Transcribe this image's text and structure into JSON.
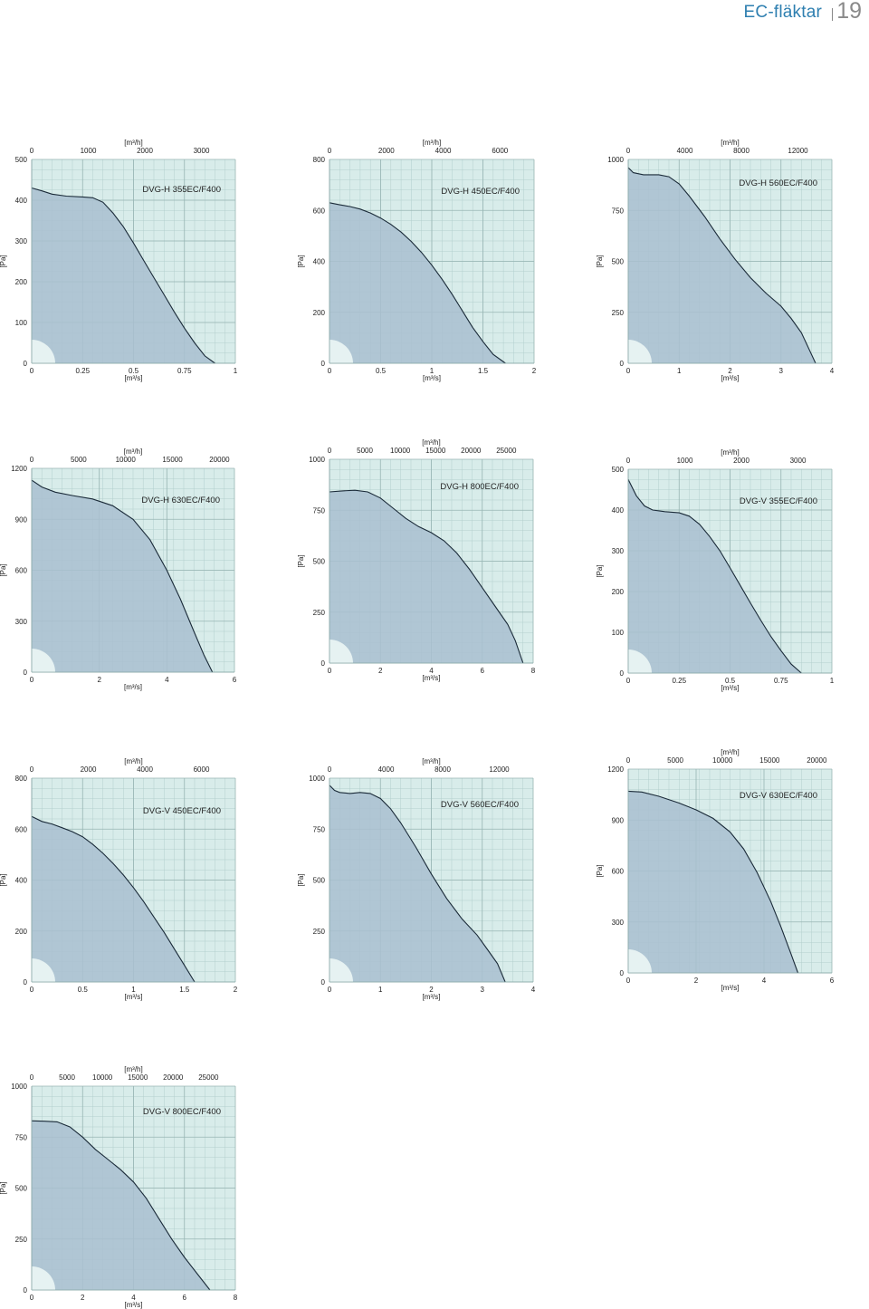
{
  "header": {
    "title": "EC-fläktar",
    "page_number": "19"
  },
  "colors": {
    "plot_background": "#d8ecea",
    "grid": "#b3cfcd",
    "curve_fill": "#a9bfd0",
    "curve_stroke": "#1a2a38",
    "corner_mark": "#ecf6f5"
  },
  "chart_data": [
    {
      "type": "area",
      "title": "DVG-H 355EC/F400",
      "xlabel": "[m³/s]",
      "x2label": "[m³/h]",
      "ylabel": "[Pa]",
      "xlim": [
        0,
        1
      ],
      "ylim": [
        0,
        500
      ],
      "x_ticks": [
        "0",
        "0.25",
        "0.5",
        "0.75",
        "1"
      ],
      "x2_ticks": [
        "0",
        "1000",
        "2000",
        "3000"
      ],
      "y_ticks": [
        "0",
        "100",
        "200",
        "300",
        "400",
        "500"
      ],
      "grid": true,
      "series": [
        {
          "x": [
            0,
            0.05,
            0.1,
            0.17,
            0.25,
            0.3,
            0.35,
            0.4,
            0.45,
            0.5,
            0.55,
            0.6,
            0.65,
            0.7,
            0.75,
            0.8,
            0.85,
            0.9
          ],
          "y": [
            430,
            423,
            415,
            410,
            408,
            406,
            395,
            368,
            335,
            295,
            252,
            210,
            168,
            126,
            86,
            50,
            18,
            0
          ]
        }
      ]
    },
    {
      "type": "area",
      "title": "DVG-H 450EC/F400",
      "xlabel": "[m³/s]",
      "x2label": "[m³/h]",
      "ylabel": "[Pa]",
      "xlim": [
        0,
        2
      ],
      "ylim": [
        0,
        800
      ],
      "x_ticks": [
        "0",
        "0.5",
        "1",
        "1.5",
        "2"
      ],
      "x2_ticks": [
        "0",
        "2000",
        "4000",
        "6000"
      ],
      "y_ticks": [
        "0",
        "200",
        "400",
        "600",
        "800"
      ],
      "grid": true,
      "series": [
        {
          "x": [
            0,
            0.1,
            0.2,
            0.3,
            0.4,
            0.5,
            0.6,
            0.7,
            0.8,
            0.9,
            1.0,
            1.1,
            1.2,
            1.3,
            1.4,
            1.5,
            1.6,
            1.72
          ],
          "y": [
            630,
            622,
            615,
            605,
            590,
            570,
            545,
            515,
            478,
            435,
            385,
            330,
            270,
            205,
            140,
            85,
            35,
            0
          ]
        }
      ]
    },
    {
      "type": "area",
      "title": "DVG-H 560EC/F400",
      "xlabel": "[m³/s]",
      "x2label": "[m³/h]",
      "ylabel": "[Pa]",
      "xlim": [
        0,
        4
      ],
      "ylim": [
        0,
        1000
      ],
      "x_ticks": [
        "0",
        "1",
        "2",
        "3",
        "4"
      ],
      "x2_ticks": [
        "0",
        "4000",
        "8000",
        "12000"
      ],
      "y_ticks": [
        "0",
        "250",
        "500",
        "750",
        "1000"
      ],
      "grid": true,
      "series": [
        {
          "x": [
            0,
            0.1,
            0.3,
            0.6,
            0.8,
            1.0,
            1.2,
            1.5,
            1.8,
            2.1,
            2.4,
            2.7,
            3.0,
            3.2,
            3.4,
            3.55,
            3.68
          ],
          "y": [
            960,
            935,
            925,
            925,
            915,
            880,
            820,
            720,
            610,
            510,
            420,
            345,
            280,
            220,
            150,
            70,
            0
          ]
        }
      ]
    },
    {
      "type": "area",
      "title": "DVG-H 630EC/F400",
      "xlabel": "[m³/s]",
      "x2label": "[m³/h]",
      "ylabel": "[Pa]",
      "xlim": [
        0,
        6
      ],
      "ylim": [
        0,
        1200
      ],
      "x_ticks": [
        "0",
        "2",
        "4",
        "6"
      ],
      "x2_ticks": [
        "0",
        "5000",
        "10000",
        "15000",
        "20000"
      ],
      "y_ticks": [
        "0",
        "300",
        "600",
        "900",
        "1200"
      ],
      "grid": true,
      "series": [
        {
          "x": [
            0,
            0.3,
            0.7,
            1.2,
            1.8,
            2.4,
            3.0,
            3.5,
            4.0,
            4.4,
            4.8,
            5.1,
            5.35
          ],
          "y": [
            1130,
            1090,
            1060,
            1040,
            1020,
            980,
            900,
            780,
            600,
            430,
            240,
            100,
            0
          ]
        }
      ]
    },
    {
      "type": "area",
      "title": "DVG-H 800EC/F400",
      "xlabel": "[m³/s]",
      "x2label": "[m³/h]",
      "ylabel": "[Pa]",
      "xlim": [
        0,
        8
      ],
      "ylim": [
        0,
        1000
      ],
      "x_ticks": [
        "0",
        "2",
        "4",
        "6",
        "8"
      ],
      "x2_ticks": [
        "0",
        "5000",
        "10000",
        "15000",
        "20000",
        "25000"
      ],
      "y_ticks": [
        "0",
        "250",
        "500",
        "750",
        "1000"
      ],
      "grid": true,
      "series": [
        {
          "x": [
            0,
            0.5,
            1.0,
            1.5,
            2.0,
            2.5,
            3.0,
            3.5,
            4.0,
            4.5,
            5.0,
            5.5,
            6.0,
            6.5,
            7.0,
            7.3,
            7.6
          ],
          "y": [
            840,
            845,
            848,
            840,
            810,
            760,
            710,
            670,
            640,
            600,
            540,
            460,
            370,
            280,
            190,
            110,
            0
          ]
        }
      ]
    },
    {
      "type": "area",
      "title": "DVG-V 355EC/F400",
      "xlabel": "[m³/s]",
      "x2label": "[m³/h]",
      "ylabel": "[Pa]",
      "xlim": [
        0,
        1
      ],
      "ylim": [
        0,
        500
      ],
      "x_ticks": [
        "0",
        "0.25",
        "0.5",
        "0.75",
        "1"
      ],
      "x2_ticks": [
        "0",
        "1000",
        "2000",
        "3000"
      ],
      "y_ticks": [
        "0",
        "100",
        "200",
        "300",
        "400",
        "500"
      ],
      "grid": true,
      "series": [
        {
          "x": [
            0,
            0.04,
            0.08,
            0.12,
            0.18,
            0.25,
            0.3,
            0.35,
            0.4,
            0.45,
            0.5,
            0.55,
            0.6,
            0.65,
            0.7,
            0.75,
            0.8,
            0.85
          ],
          "y": [
            475,
            435,
            410,
            400,
            396,
            393,
            385,
            365,
            335,
            300,
            258,
            215,
            172,
            130,
            90,
            55,
            22,
            0
          ]
        }
      ]
    },
    {
      "type": "area",
      "title": "DVG-V 450EC/F400",
      "xlabel": "[m³/s]",
      "x2label": "[m³/h]",
      "ylabel": "[Pa]",
      "xlim": [
        0,
        2
      ],
      "ylim": [
        0,
        800
      ],
      "x_ticks": [
        "0",
        "0.5",
        "1",
        "1.5",
        "2"
      ],
      "x2_ticks": [
        "0",
        "2000",
        "4000",
        "6000"
      ],
      "y_ticks": [
        "0",
        "200",
        "400",
        "600",
        "800"
      ],
      "grid": true,
      "series": [
        {
          "x": [
            0,
            0.1,
            0.2,
            0.3,
            0.4,
            0.5,
            0.6,
            0.7,
            0.8,
            0.9,
            1.0,
            1.1,
            1.2,
            1.3,
            1.4,
            1.5,
            1.6
          ],
          "y": [
            650,
            630,
            620,
            605,
            590,
            570,
            540,
            505,
            465,
            420,
            370,
            315,
            255,
            195,
            130,
            65,
            0
          ]
        }
      ]
    },
    {
      "type": "area",
      "title": "DVG-V 560EC/F400",
      "xlabel": "[m³/s]",
      "x2label": "[m³/h]",
      "ylabel": "[Pa]",
      "xlim": [
        0,
        4
      ],
      "ylim": [
        0,
        1000
      ],
      "x_ticks": [
        "0",
        "1",
        "2",
        "3",
        "4"
      ],
      "x2_ticks": [
        "0",
        "4000",
        "8000",
        "12000"
      ],
      "y_ticks": [
        "0",
        "250",
        "500",
        "750",
        "1000"
      ],
      "grid": true,
      "series": [
        {
          "x": [
            0,
            0.1,
            0.2,
            0.4,
            0.6,
            0.8,
            1.0,
            1.2,
            1.4,
            1.7,
            2.0,
            2.3,
            2.6,
            2.9,
            3.1,
            3.3,
            3.45
          ],
          "y": [
            965,
            940,
            930,
            925,
            930,
            925,
            900,
            850,
            780,
            660,
            530,
            410,
            310,
            230,
            160,
            90,
            0
          ]
        }
      ]
    },
    {
      "type": "area",
      "title": "DVG-V 630EC/F400",
      "xlabel": "[m³/s]",
      "x2label": "[m³/h]",
      "ylabel": "[Pa]",
      "xlim": [
        0,
        6
      ],
      "ylim": [
        0,
        1200
      ],
      "x_ticks": [
        "0",
        "2",
        "4",
        "6"
      ],
      "x2_ticks": [
        "0",
        "5000",
        "10000",
        "15000",
        "20000"
      ],
      "y_ticks": [
        "0",
        "300",
        "600",
        "900",
        "1200"
      ],
      "grid": true,
      "series": [
        {
          "x": [
            0,
            0.4,
            0.9,
            1.5,
            2.0,
            2.5,
            3.0,
            3.4,
            3.8,
            4.2,
            4.5,
            4.8,
            5.0
          ],
          "y": [
            1070,
            1065,
            1040,
            1000,
            960,
            910,
            830,
            730,
            590,
            420,
            270,
            110,
            0
          ]
        }
      ]
    },
    {
      "type": "area",
      "title": "DVG-V 800EC/F400",
      "xlabel": "[m³/s]",
      "x2label": "[m³/h]",
      "ylabel": "[Pa]",
      "xlim": [
        0,
        8
      ],
      "ylim": [
        0,
        1000
      ],
      "x_ticks": [
        "0",
        "2",
        "4",
        "6",
        "8"
      ],
      "x2_ticks": [
        "0",
        "5000",
        "10000",
        "15000",
        "20000",
        "25000"
      ],
      "y_ticks": [
        "0",
        "250",
        "500",
        "750",
        "1000"
      ],
      "grid": true,
      "series": [
        {
          "x": [
            0,
            0.5,
            1.0,
            1.5,
            2.0,
            2.5,
            3.0,
            3.5,
            4.0,
            4.5,
            5.0,
            5.5,
            6.0,
            6.5,
            7.0
          ],
          "y": [
            830,
            828,
            825,
            800,
            750,
            690,
            640,
            590,
            530,
            450,
            350,
            250,
            160,
            80,
            0
          ]
        }
      ]
    }
  ]
}
